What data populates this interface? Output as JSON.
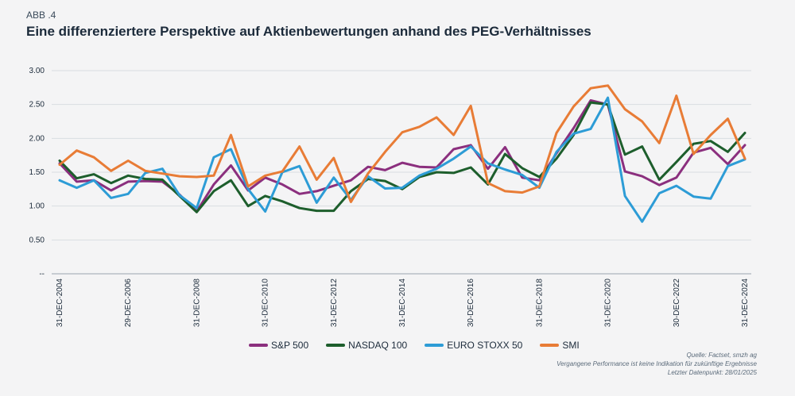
{
  "header": {
    "label": "ABB .4",
    "title": "Eine differenziertere Perspektive auf Aktienbewertungen anhand des PEG-Verhältnisses"
  },
  "notes": {
    "source": "Quelle: Factset, smzh ag",
    "disclaimer": "Vergangene Performance ist keine Indikation für zukünftige Ergebnisse",
    "datapoint": "Letzter Datenpunkt: 28/01/2025"
  },
  "chart_data": {
    "type": "line",
    "title": "Eine differenziertere Perspektive auf Aktienbewertungen anhand des PEG-Verhältnisses",
    "xlabel": "",
    "ylabel": "",
    "ylim": [
      0,
      3
    ],
    "yticks": [
      "--",
      "0.50",
      "1.00",
      "1.50",
      "2.00",
      "2.50",
      "3.00"
    ],
    "xticks": [
      "31-DEC-2004",
      "29-DEC-2006",
      "31-DEC-2008",
      "31-DEC-2010",
      "31-DEC-2012",
      "31-DEC-2014",
      "30-DEC-2016",
      "31-DEC-2018",
      "31-DEC-2020",
      "30-DEC-2022",
      "31-DEC-2024"
    ],
    "n_points": 41,
    "series": [
      {
        "name": "S&P 500",
        "color": "#8b2f7e",
        "values": [
          1.63,
          1.36,
          1.38,
          1.23,
          1.36,
          1.37,
          1.36,
          1.17,
          0.92,
          1.32,
          1.6,
          1.23,
          1.42,
          1.32,
          1.18,
          1.22,
          1.3,
          1.38,
          1.58,
          1.53,
          1.64,
          1.58,
          1.57,
          1.84,
          1.9,
          1.55,
          1.87,
          1.42,
          1.38,
          1.78,
          2.15,
          2.56,
          2.5,
          1.51,
          1.44,
          1.31,
          1.42,
          1.79,
          1.86,
          1.62,
          1.9
        ]
      },
      {
        "name": "NASDAQ 100",
        "color": "#1d5e2c",
        "values": [
          1.67,
          1.41,
          1.47,
          1.34,
          1.45,
          1.4,
          1.39,
          1.15,
          0.91,
          1.22,
          1.38,
          1.0,
          1.15,
          1.07,
          0.97,
          0.93,
          0.93,
          1.22,
          1.4,
          1.37,
          1.25,
          1.43,
          1.5,
          1.49,
          1.57,
          1.32,
          1.77,
          1.56,
          1.43,
          1.7,
          2.05,
          2.53,
          2.5,
          1.76,
          1.88,
          1.39,
          1.65,
          1.92,
          1.96,
          1.8,
          2.08
        ]
      },
      {
        "name": "EURO STOXX 50",
        "color": "#2d9cd6",
        "values": [
          1.38,
          1.27,
          1.38,
          1.12,
          1.18,
          1.49,
          1.55,
          1.16,
          0.97,
          1.72,
          1.84,
          1.25,
          0.92,
          1.5,
          1.59,
          1.05,
          1.42,
          1.09,
          1.44,
          1.26,
          1.27,
          1.45,
          1.55,
          1.7,
          1.88,
          1.63,
          1.54,
          1.46,
          1.27,
          1.8,
          2.07,
          2.14,
          2.6,
          1.15,
          0.77,
          1.19,
          1.3,
          1.14,
          1.11,
          1.59,
          1.69
        ]
      },
      {
        "name": "SMI",
        "color": "#e87c36",
        "values": [
          1.61,
          1.82,
          1.72,
          1.52,
          1.67,
          1.52,
          1.48,
          1.44,
          1.43,
          1.45,
          2.05,
          1.29,
          1.45,
          1.51,
          1.88,
          1.39,
          1.71,
          1.06,
          1.48,
          1.8,
          2.09,
          2.17,
          2.31,
          2.05,
          2.48,
          1.34,
          1.22,
          1.2,
          1.29,
          2.08,
          2.47,
          2.74,
          2.78,
          2.43,
          2.25,
          1.93,
          2.63,
          1.77,
          2.05,
          2.29,
          1.7
        ]
      }
    ]
  }
}
